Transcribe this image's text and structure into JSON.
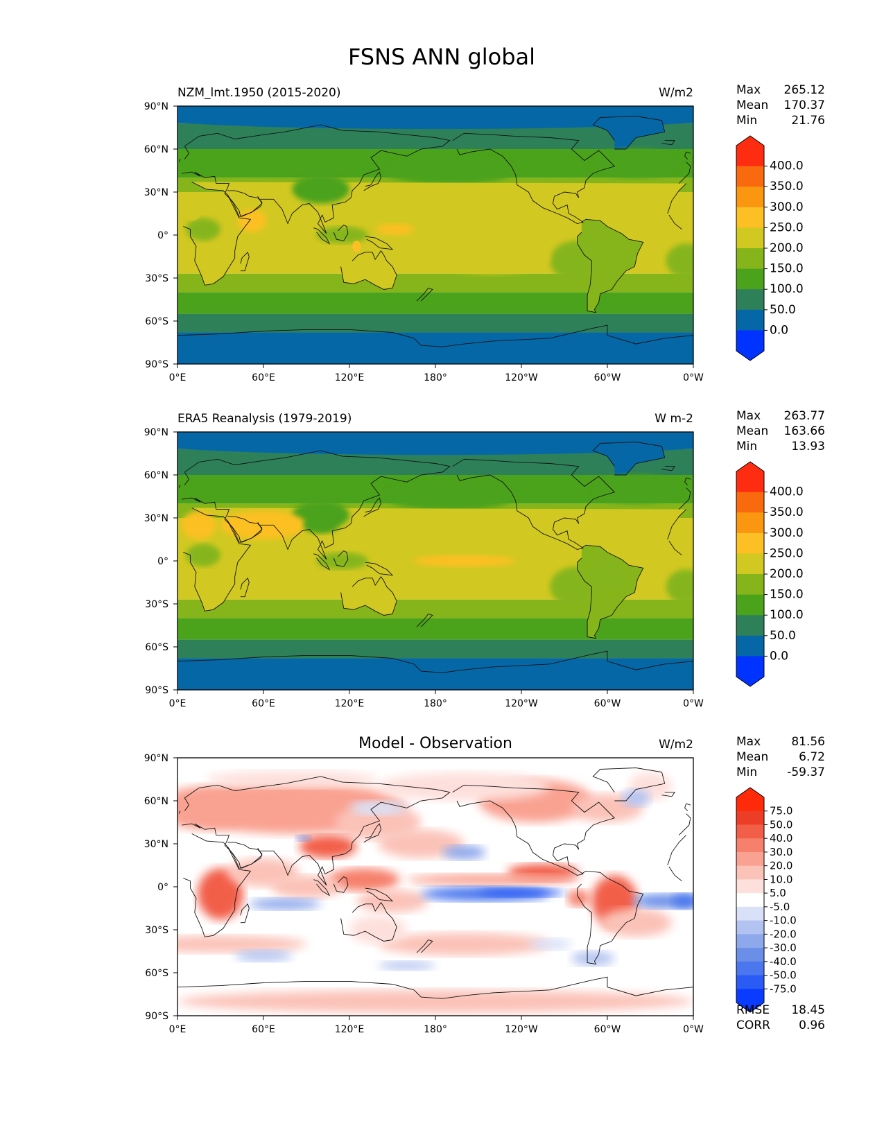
{
  "figure_title": "FSNS ANN global",
  "chart_data": [
    {
      "type": "heatmap",
      "id": "model",
      "title_left": "NZM_lmt.1950 (2015-2020)",
      "title_center": "",
      "title_right": "W/m2",
      "x_ticks": [
        "0°E",
        "60°E",
        "120°E",
        "180°",
        "120°W",
        "60°W",
        "0°W"
      ],
      "y_ticks": [
        "90°N",
        "60°N",
        "30°N",
        "0°",
        "30°S",
        "60°S",
        "90°S"
      ],
      "x_range": [
        0,
        360
      ],
      "y_range": [
        -90,
        90
      ],
      "stats": [
        {
          "label": "Max",
          "value": "265.12"
        },
        {
          "label": "Mean",
          "value": "170.37"
        },
        {
          "label": "Min",
          "value": "21.76"
        }
      ],
      "colorbar": {
        "levels": [
          "400.0",
          "350.0",
          "300.0",
          "250.0",
          "200.0",
          "150.0",
          "100.0",
          "50.0",
          "0.0"
        ],
        "colors": [
          "#0033ff",
          "#0567a6",
          "#2e8059",
          "#4ba21b",
          "#85b51a",
          "#d2c822",
          "#fcc024",
          "#fa9610",
          "#f96a0f",
          "#fe2d12"
        ],
        "extend": "both"
      },
      "field": "model"
    },
    {
      "type": "heatmap",
      "id": "obs",
      "title_left": "ERA5 Reanalysis (1979-2019)",
      "title_center": "",
      "title_right": "W m-2",
      "x_ticks": [
        "0°E",
        "60°E",
        "120°E",
        "180°",
        "120°W",
        "60°W",
        "0°W"
      ],
      "y_ticks": [
        "90°N",
        "60°N",
        "30°N",
        "0°",
        "30°S",
        "60°S",
        "90°S"
      ],
      "x_range": [
        0,
        360
      ],
      "y_range": [
        -90,
        90
      ],
      "stats": [
        {
          "label": "Max",
          "value": "263.77"
        },
        {
          "label": "Mean",
          "value": "163.66"
        },
        {
          "label": "Min",
          "value": "13.93"
        }
      ],
      "colorbar": {
        "levels": [
          "400.0",
          "350.0",
          "300.0",
          "250.0",
          "200.0",
          "150.0",
          "100.0",
          "50.0",
          "0.0"
        ],
        "colors": [
          "#0033ff",
          "#0567a6",
          "#2e8059",
          "#4ba21b",
          "#85b51a",
          "#d2c822",
          "#fcc024",
          "#fa9610",
          "#f96a0f",
          "#fe2d12"
        ],
        "extend": "both"
      },
      "field": "obs"
    },
    {
      "type": "heatmap",
      "id": "diff",
      "title_left": "",
      "title_center": "Model - Observation",
      "title_right": "W/m2",
      "x_ticks": [
        "0°E",
        "60°E",
        "120°E",
        "180°",
        "120°W",
        "60°W",
        "0°W"
      ],
      "y_ticks": [
        "90°N",
        "60°N",
        "30°N",
        "0°",
        "30°S",
        "60°S",
        "90°S"
      ],
      "x_range": [
        0,
        360
      ],
      "y_range": [
        -90,
        90
      ],
      "stats": [
        {
          "label": "Max",
          "value": "81.56"
        },
        {
          "label": "Mean",
          "value": "6.72"
        },
        {
          "label": "Min",
          "value": "-59.37"
        }
      ],
      "extra_stats": [
        {
          "label": "RMSE",
          "value": "18.45"
        },
        {
          "label": "CORR",
          "value": "0.96"
        }
      ],
      "colorbar": {
        "levels": [
          "75.0",
          "50.0",
          "40.0",
          "30.0",
          "20.0",
          "10.0",
          "5.0",
          "-5.0",
          "-10.0",
          "-20.0",
          "-30.0",
          "-40.0",
          "-50.0",
          "-75.0"
        ],
        "colors": [
          "#0a3cff",
          "#2a5bf5",
          "#4a76ee",
          "#6b8ee8",
          "#8ea8ec",
          "#b3c3f1",
          "#d9e1f8",
          "#ffffff",
          "#fde0dc",
          "#fbc2b8",
          "#f9a292",
          "#f6806c",
          "#f25e48",
          "#ee3d27",
          "#ff2a0a"
        ],
        "extend": "both"
      },
      "field": "diff"
    }
  ]
}
